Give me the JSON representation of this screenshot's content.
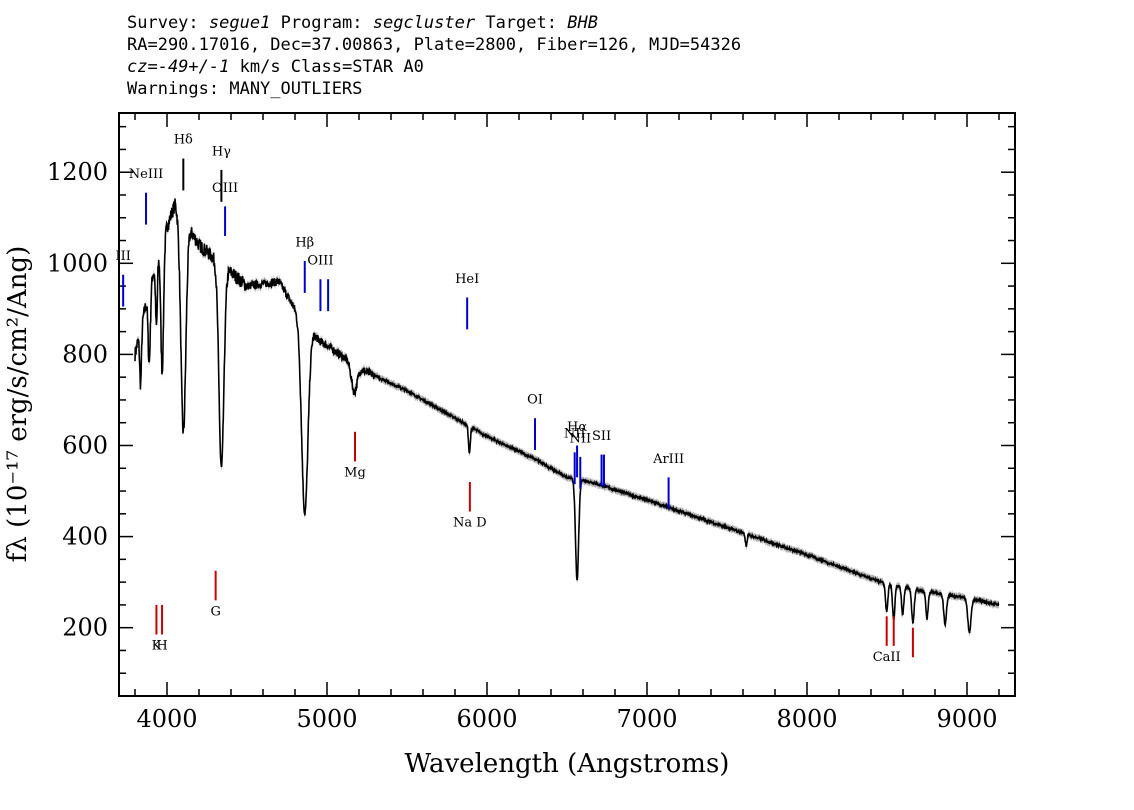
{
  "header": {
    "survey_label": "Survey:",
    "survey": "segue1",
    "program_label": "Program:",
    "program": "segcluster",
    "target_label": "Target:",
    "target": "BHB",
    "line2": "RA=290.17016, Dec=37.00863, Plate=2800, Fiber=126, MJD=54326",
    "cz_label": "cz=",
    "cz_value": "-49+/-1",
    "cz_unit": "km/s Class=STAR A0",
    "warnings": "Warnings: MANY_OUTLIERS"
  },
  "chart_data": {
    "type": "line",
    "xlabel": "Wavelength (Angstroms)",
    "ylabel": "fλ (10⁻¹⁷ erg/s/cm²/Ang)",
    "xlim": [
      3700,
      9300
    ],
    "ylim": [
      50,
      1330
    ],
    "x_ticks": [
      4000,
      5000,
      6000,
      7000,
      8000,
      9000
    ],
    "y_ticks": [
      200,
      400,
      600,
      800,
      1000,
      1200
    ],
    "colors": {
      "spectrum": "#000000",
      "error_band": "#b0b0b0",
      "emission": "#0000cc",
      "absorption": "#cc0000"
    },
    "continuum": [
      [
        3800,
        800
      ],
      [
        3900,
        960
      ],
      [
        4000,
        1080
      ],
      [
        4050,
        1130
      ],
      [
        4200,
        1040
      ],
      [
        4300,
        1010
      ],
      [
        4500,
        950
      ],
      [
        4700,
        960
      ],
      [
        4800,
        900
      ],
      [
        4950,
        830
      ],
      [
        5000,
        820
      ],
      [
        5200,
        770
      ],
      [
        5500,
        720
      ],
      [
        5800,
        660
      ],
      [
        6000,
        620
      ],
      [
        6300,
        570
      ],
      [
        6500,
        530
      ],
      [
        6650,
        520
      ],
      [
        7000,
        480
      ],
      [
        7500,
        420
      ],
      [
        8000,
        360
      ],
      [
        8500,
        295
      ],
      [
        9000,
        265
      ],
      [
        9200,
        250
      ]
    ],
    "absorption_features": [
      [
        3835,
        120,
        8
      ],
      [
        3889,
        160,
        10
      ],
      [
        3934,
        140,
        8
      ],
      [
        3970,
        280,
        12
      ],
      [
        4102,
        470,
        22
      ],
      [
        4340,
        450,
        22
      ],
      [
        4861,
        420,
        28
      ],
      [
        5170,
        60,
        25
      ],
      [
        5890,
        60,
        8
      ],
      [
        6563,
        220,
        14
      ],
      [
        7620,
        25,
        8
      ],
      [
        8498,
        60,
        10
      ],
      [
        8542,
        75,
        10
      ],
      [
        8598,
        60,
        10
      ],
      [
        8662,
        75,
        11
      ],
      [
        8750,
        60,
        10
      ],
      [
        8863,
        65,
        12
      ],
      [
        9015,
        75,
        14
      ]
    ],
    "emission_lines": [
      {
        "label": "NeIII",
        "x": 3869,
        "y": [
          1085,
          1155
        ],
        "label_y": 1187
      },
      {
        "label": "OIII",
        "x": 4363,
        "y": [
          1060,
          1125
        ],
        "label_y": 1157
      },
      {
        "label": "Hβ",
        "x": 4861,
        "y": [
          935,
          1005
        ],
        "label_y": 1037
      },
      {
        "label": "OIII",
        "x": 4959,
        "y": [
          895,
          965
        ],
        "label_y": 997
      },
      {
        "label": "",
        "x": 5007,
        "y": [
          895,
          965
        ],
        "label_y": 997
      },
      {
        "label": "HeI",
        "x": 5876,
        "y": [
          855,
          925
        ],
        "label_y": 957
      },
      {
        "label": "OI",
        "x": 6300,
        "y": [
          590,
          660
        ],
        "label_y": 692
      },
      {
        "label": "NII",
        "x": 6548,
        "y": [
          515,
          585
        ],
        "label_y": 617
      },
      {
        "label": "Hα",
        "x": 6563,
        "y": [
          530,
          600
        ],
        "label_y": 632
      },
      {
        "label": "NII",
        "x": 6583,
        "y": [
          505,
          575
        ],
        "label_y": 607
      },
      {
        "label": "SII",
        "x": 6716,
        "y": [
          510,
          580
        ],
        "label_y": 612
      },
      {
        "label": "",
        "x": 6731,
        "y": [
          510,
          580
        ],
        "label_y": 612
      },
      {
        "label": "ArIII",
        "x": 7135,
        "y": [
          460,
          530
        ],
        "label_y": 562
      },
      {
        "label": "III",
        "x": 3726,
        "y": [
          905,
          975
        ],
        "label_y": 1007
      }
    ],
    "hydrogen_lines": [
      {
        "label": "Hδ",
        "x": 4102,
        "y": [
          1160,
          1230
        ],
        "label_y": 1263
      },
      {
        "label": "Hγ",
        "x": 4340,
        "y": [
          1135,
          1205
        ],
        "label_y": 1237
      }
    ],
    "absorption_lines": [
      {
        "label": "K",
        "x": 3934,
        "y": [
          185,
          250
        ],
        "label_y": 152
      },
      {
        "label": "H",
        "x": 3969,
        "y": [
          185,
          250
        ],
        "label_y": 152
      },
      {
        "label": "G",
        "x": 4304,
        "y": [
          260,
          325
        ],
        "label_y": 227
      },
      {
        "label": "Mg",
        "x": 5175,
        "y": [
          565,
          630
        ],
        "label_y": 532
      },
      {
        "label": "Na D",
        "x": 5893,
        "y": [
          455,
          520
        ],
        "label_y": 422
      },
      {
        "label": "CaII",
        "x": 8498,
        "y": [
          160,
          225
        ],
        "label_y": 127
      },
      {
        "label": "",
        "x": 8542,
        "y": [
          160,
          225
        ],
        "label_y": 127
      },
      {
        "label": "",
        "x": 8662,
        "y": [
          135,
          200
        ],
        "label_y": 127
      }
    ]
  }
}
